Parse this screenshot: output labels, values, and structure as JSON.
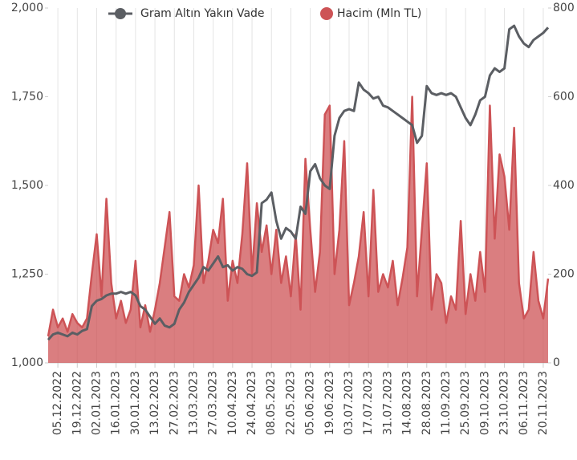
{
  "chart_data": {
    "type": "line",
    "legend": "top",
    "grid": "x",
    "categories": [
      null,
      null,
      "05.12.2022",
      null,
      null,
      null,
      "19.12.2022",
      null,
      null,
      null,
      "02.01.2023",
      null,
      null,
      null,
      "16.01.2023",
      null,
      null,
      null,
      "30.01.2023",
      null,
      null,
      null,
      "13.02.2023",
      null,
      null,
      null,
      "27.02.2023",
      null,
      null,
      null,
      "13.03.2023",
      null,
      null,
      null,
      "27.03.2023",
      null,
      null,
      null,
      "10.04.2023",
      null,
      null,
      null,
      "24.04.2023",
      null,
      null,
      null,
      "08.05.2023",
      null,
      null,
      null,
      "22.05.2023",
      null,
      null,
      null,
      "05.06.2023",
      null,
      null,
      null,
      "19.06.2023",
      null,
      null,
      null,
      "03.07.2023",
      null,
      null,
      null,
      "17.07.2023",
      null,
      null,
      null,
      "31.07.2023",
      null,
      null,
      null,
      "14.08.2023",
      null,
      null,
      null,
      "28.08.2023",
      null,
      null,
      null,
      "11.09.2023",
      null,
      null,
      null,
      "25.09.2023",
      null,
      null,
      null,
      "09.10.2023",
      null,
      null,
      null,
      "23.10.2023",
      null,
      null,
      null,
      "06.11.2023",
      null,
      null,
      null,
      "20.11.2023",
      null
    ],
    "ylim": [
      1000,
      2000
    ],
    "yticks": [
      {
        "value": 1000,
        "label": "1,000"
      },
      {
        "value": 1250,
        "label": "1,250"
      },
      {
        "value": 1500,
        "label": "1,500"
      },
      {
        "value": 1750,
        "label": "1,750"
      },
      {
        "value": 2000,
        "label": "2,000"
      }
    ],
    "y2lim": [
      0,
      800
    ],
    "y2ticks": [
      0,
      200,
      400,
      600,
      800
    ],
    "series": [
      {
        "name": "Gram Altın Yakın Vade",
        "type": "line",
        "axis": "y",
        "color": "#5b5e63",
        "values": [
          1065,
          1080,
          1085,
          1080,
          1075,
          1085,
          1080,
          1090,
          1095,
          1160,
          1175,
          1180,
          1190,
          1195,
          1195,
          1200,
          1195,
          1200,
          1190,
          1160,
          1150,
          1130,
          1110,
          1125,
          1105,
          1100,
          1110,
          1150,
          1170,
          1200,
          1220,
          1240,
          1270,
          1260,
          1280,
          1300,
          1270,
          1275,
          1260,
          1270,
          1265,
          1250,
          1245,
          1255,
          1450,
          1460,
          1480,
          1400,
          1350,
          1380,
          1370,
          1350,
          1440,
          1420,
          1540,
          1560,
          1520,
          1500,
          1490,
          1640,
          1690,
          1710,
          1715,
          1710,
          1790,
          1770,
          1760,
          1745,
          1750,
          1725,
          1720,
          1710,
          1700,
          1690,
          1680,
          1670,
          1620,
          1640,
          1780,
          1760,
          1755,
          1760,
          1755,
          1760,
          1750,
          1720,
          1690,
          1670,
          1700,
          1740,
          1750,
          1810,
          1830,
          1820,
          1830,
          1940,
          1950,
          1920,
          1900,
          1890,
          1910,
          1920,
          1930,
          1945
        ]
      },
      {
        "name": "Hacim (Mln TL)",
        "type": "area",
        "axis": "y2",
        "color": "#cd5356",
        "values": [
          60,
          120,
          80,
          100,
          70,
          110,
          90,
          80,
          100,
          200,
          290,
          150,
          370,
          180,
          100,
          140,
          90,
          120,
          230,
          80,
          130,
          70,
          120,
          180,
          260,
          340,
          150,
          140,
          200,
          170,
          220,
          400,
          180,
          230,
          300,
          270,
          370,
          140,
          230,
          180,
          290,
          450,
          200,
          360,
          250,
          310,
          200,
          300,
          180,
          240,
          150,
          290,
          120,
          460,
          300,
          160,
          250,
          560,
          580,
          200,
          300,
          500,
          130,
          180,
          240,
          340,
          150,
          390,
          160,
          200,
          170,
          230,
          130,
          190,
          260,
          600,
          150,
          300,
          450,
          120,
          200,
          180,
          90,
          150,
          120,
          320,
          110,
          200,
          140,
          250,
          160,
          580,
          280,
          470,
          420,
          300,
          530,
          180,
          100,
          120,
          250,
          140,
          100,
          190
        ]
      }
    ]
  }
}
